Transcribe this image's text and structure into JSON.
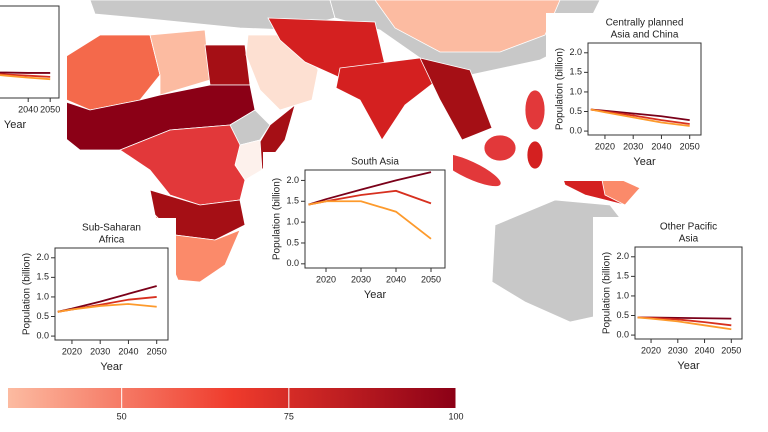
{
  "chart_data": [
    {
      "type": "line",
      "xlabel": "Year",
      "x": [
        2015,
        2020,
        2030,
        2040,
        2050
      ],
      "xlim": [
        2014,
        2054
      ],
      "xticks": [
        2040,
        2050
      ],
      "ylim": [
        -0.1,
        2.25
      ],
      "series": [
        {
          "color": "#7a0019",
          "values": [
            0.55,
            0.55,
            0.55,
            0.54,
            0.54
          ]
        },
        {
          "color": "#d7301f",
          "values": [
            0.55,
            0.53,
            0.5,
            0.47,
            0.44
          ]
        },
        {
          "color": "#fd9a2c",
          "values": [
            0.55,
            0.52,
            0.47,
            0.42,
            0.38
          ]
        }
      ]
    },
    {
      "type": "line",
      "title_lines": [
        "South Asia"
      ],
      "xlabel": "Year",
      "ylabel": "Population (billion)",
      "x": [
        2015,
        2020,
        2030,
        2040,
        2050
      ],
      "xlim": [
        2014,
        2054
      ],
      "xticks": [
        2020,
        2030,
        2040,
        2050
      ],
      "ylim": [
        -0.1,
        2.25
      ],
      "yticks": [
        {
          "value": 0,
          "label": "0.0"
        },
        {
          "value": 0.5,
          "label": "0.5"
        },
        {
          "value": 1,
          "label": "1.0"
        },
        {
          "value": 1.5,
          "label": "1.5"
        },
        {
          "value": 2,
          "label": "2.0"
        }
      ],
      "series": [
        {
          "color": "#7a0019",
          "values": [
            1.42,
            1.55,
            1.78,
            2.0,
            2.2
          ]
        },
        {
          "color": "#d7301f",
          "values": [
            1.42,
            1.5,
            1.65,
            1.75,
            1.45
          ]
        },
        {
          "color": "#fd9a2c",
          "values": [
            1.42,
            1.5,
            1.5,
            1.25,
            0.6
          ]
        }
      ]
    },
    {
      "type": "line",
      "title_lines": [
        "Sub-Saharan",
        "Africa"
      ],
      "xlabel": "Year",
      "ylabel": "Population (billion)",
      "x": [
        2015,
        2020,
        2030,
        2040,
        2050
      ],
      "xlim": [
        2014,
        2054
      ],
      "xticks": [
        2020,
        2030,
        2040,
        2050
      ],
      "ylim": [
        -0.1,
        2.25
      ],
      "yticks": [
        {
          "value": 0,
          "label": "0.0"
        },
        {
          "value": 0.5,
          "label": "0.5"
        },
        {
          "value": 1,
          "label": "1.0"
        },
        {
          "value": 1.5,
          "label": "1.5"
        },
        {
          "value": 2,
          "label": "2.0"
        }
      ],
      "series": [
        {
          "color": "#7a0019",
          "values": [
            0.62,
            0.7,
            0.88,
            1.08,
            1.28
          ]
        },
        {
          "color": "#d7301f",
          "values": [
            0.62,
            0.68,
            0.8,
            0.93,
            1.0
          ]
        },
        {
          "color": "#fd9a2c",
          "values": [
            0.62,
            0.68,
            0.77,
            0.82,
            0.75
          ]
        }
      ]
    },
    {
      "type": "line",
      "title_lines": [
        "Centrally planned",
        "Asia and China"
      ],
      "xlabel": "Year",
      "ylabel": "Population (billion)",
      "x": [
        2015,
        2020,
        2030,
        2040,
        2050
      ],
      "xlim": [
        2014,
        2054
      ],
      "xticks": [
        2020,
        2030,
        2040,
        2050
      ],
      "ylim": [
        -0.1,
        2.25
      ],
      "yticks": [
        {
          "value": 0,
          "label": "0.0"
        },
        {
          "value": 0.5,
          "label": "0.5"
        },
        {
          "value": 1,
          "label": "1.0"
        },
        {
          "value": 1.5,
          "label": "1.5"
        },
        {
          "value": 2,
          "label": "2.0"
        }
      ],
      "series": [
        {
          "color": "#7a0019",
          "values": [
            0.55,
            0.52,
            0.45,
            0.38,
            0.28
          ]
        },
        {
          "color": "#d7301f",
          "values": [
            0.55,
            0.5,
            0.4,
            0.28,
            0.18
          ]
        },
        {
          "color": "#fd9a2c",
          "values": [
            0.55,
            0.48,
            0.35,
            0.22,
            0.13
          ]
        }
      ]
    },
    {
      "type": "line",
      "title_lines": [
        "Other Pacific",
        "Asia"
      ],
      "xlabel": "Year",
      "ylabel": "Population (billion)",
      "x": [
        2015,
        2020,
        2030,
        2040,
        2050
      ],
      "xlim": [
        2014,
        2054
      ],
      "xticks": [
        2020,
        2030,
        2040,
        2050
      ],
      "ylim": [
        -0.1,
        2.25
      ],
      "yticks": [
        {
          "value": 0,
          "label": "0.0"
        },
        {
          "value": 0.5,
          "label": "0.5"
        },
        {
          "value": 1,
          "label": "1.0"
        },
        {
          "value": 1.5,
          "label": "1.5"
        },
        {
          "value": 2,
          "label": "2.0"
        }
      ],
      "series": [
        {
          "color": "#7a0019",
          "values": [
            0.45,
            0.45,
            0.44,
            0.43,
            0.42
          ]
        },
        {
          "color": "#d7301f",
          "values": [
            0.45,
            0.44,
            0.4,
            0.33,
            0.25
          ]
        },
        {
          "color": "#fd9a2c",
          "values": [
            0.45,
            0.42,
            0.35,
            0.25,
            0.15
          ]
        }
      ]
    }
  ],
  "colorbar": {
    "lim": [
      33,
      100
    ],
    "ticks": [
      50,
      75,
      100
    ],
    "colors": [
      "#fcbba1",
      "#ef3b2c",
      "#8b0016"
    ]
  }
}
